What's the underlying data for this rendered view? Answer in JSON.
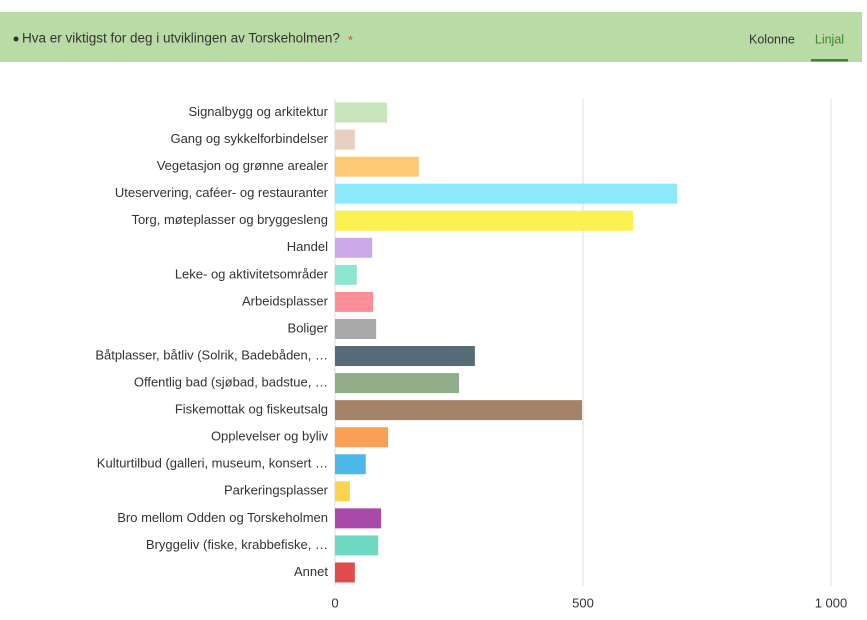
{
  "chart_data": {
    "type": "bar",
    "orientation": "horizontal",
    "title": "Hva er viktigst for deg i utviklingen av Torskeholmen?",
    "required_marker": "*",
    "categories": [
      "Signalbygg og arkitektur",
      "Gang og sykkelforbindelser",
      "Vegetasjon og grønne arealer",
      "Uteservering, caféer- og restauranter",
      "Torg, møteplasser og bryggesleng",
      "Handel",
      "Leke- og aktivitetsområder",
      "Arbeidsplasser",
      "Boliger",
      "Båtplasser, båtliv (Solrik, Badebåden, …",
      "Offentlig bad (sjøbad, badstue, …",
      "Fiskemottak og fiskeutsalg",
      "Opplevelser og byliv",
      "Kulturtilbud (galleri, museum, konsert …",
      "Parkeringsplasser",
      "Bro mellom Odden og Torskeholmen",
      "Bryggeliv (fiske, krabbefiske, …",
      "Annet"
    ],
    "values": [
      105,
      40,
      169,
      690,
      601,
      75,
      44,
      77,
      83,
      282,
      250,
      498,
      107,
      62,
      30,
      93,
      87,
      40
    ],
    "colors": [
      "#c8e4ba",
      "#e8cfbf",
      "#fdc974",
      "#8ae9fb",
      "#fdf152",
      "#cca8ea",
      "#8fe6cf",
      "#fd8e98",
      "#a8a8a8",
      "#566b75",
      "#92ad89",
      "#a38267",
      "#f8a155",
      "#4db9e8",
      "#fdd44f",
      "#a94aa9",
      "#6ed9c0",
      "#e04b4b"
    ],
    "xlim": [
      0,
      1000
    ],
    "xticks": [
      0,
      500,
      {
        "value": 1000,
        "label": "1 000"
      }
    ],
    "grid": true
  },
  "tabs": {
    "items": [
      "Kolonne",
      "Linjal"
    ],
    "selected": 1
  }
}
